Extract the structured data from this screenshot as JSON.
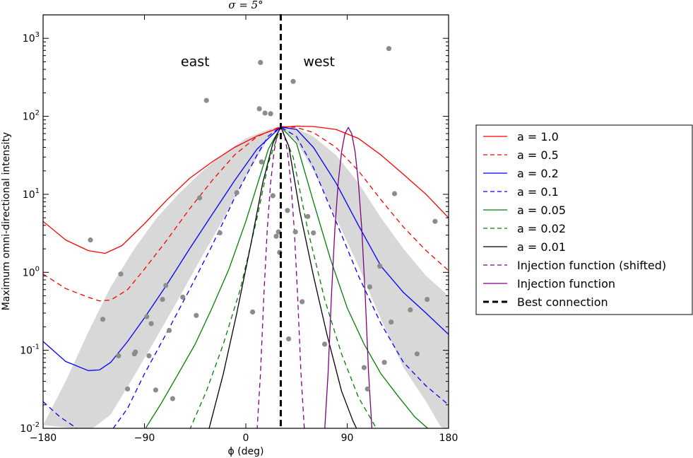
{
  "chart_data": {
    "type": "line",
    "title": "σ = 5°",
    "xlabel": "ϕ (deg)",
    "ylabel": "Maximum omni-directional intensity",
    "xlim": [
      -180,
      180
    ],
    "ylim": [
      0.01,
      2000
    ],
    "yscale": "log",
    "xticks": [
      -180,
      -90,
      0,
      90,
      180
    ],
    "xtick_labels": [
      "−180",
      "−90",
      "0",
      "90",
      "180"
    ],
    "yticks": [
      {
        "value": 0.01,
        "base": "10",
        "exp": "-2"
      },
      {
        "value": 0.1,
        "base": "10",
        "exp": "-1"
      },
      {
        "value": 1,
        "base": "10",
        "exp": "0"
      },
      {
        "value": 10,
        "base": "10",
        "exp": "1"
      },
      {
        "value": 100,
        "base": "10",
        "exp": "2"
      },
      {
        "value": 1000,
        "base": "10",
        "exp": "3"
      }
    ],
    "annotations": [
      {
        "text": "east",
        "x": -45,
        "y": 500
      },
      {
        "text": "west",
        "x": 65,
        "y": 500
      }
    ],
    "best_connection_x": 31,
    "series": [
      {
        "name": "a = 1.0",
        "color": "#ff0000",
        "style": "solid",
        "x": [
          -180,
          -160,
          -140,
          -125,
          -110,
          -90,
          -70,
          -50,
          -30,
          -10,
          10,
          31,
          45,
          60,
          80,
          100,
          120,
          140,
          160,
          180
        ],
        "y": [
          4.5,
          2.6,
          1.9,
          1.75,
          2.2,
          4.2,
          8.5,
          16,
          26,
          40,
          56,
          72,
          75,
          74,
          68,
          52,
          32,
          18,
          10,
          5
        ]
      },
      {
        "name": "a = 0.5",
        "color": "#ff0000",
        "style": "dashed",
        "x": [
          -180,
          -160,
          -140,
          -130,
          -120,
          -105,
          -90,
          -70,
          -50,
          -30,
          -10,
          10,
          31,
          45,
          60,
          80,
          100,
          120,
          140,
          160,
          180
        ],
        "y": [
          0.95,
          0.62,
          0.48,
          0.43,
          0.44,
          0.6,
          1.1,
          2.6,
          6.5,
          15,
          32,
          55,
          74,
          72,
          62,
          40,
          20,
          8.5,
          3.8,
          1.9,
          1.05
        ]
      },
      {
        "name": "a = 0.2",
        "color": "#0000ff",
        "style": "solid",
        "x": [
          -180,
          -160,
          -140,
          -130,
          -120,
          -105,
          -90,
          -70,
          -50,
          -30,
          -10,
          10,
          31,
          45,
          60,
          80,
          100,
          120,
          140,
          160,
          180
        ],
        "y": [
          0.13,
          0.072,
          0.055,
          0.056,
          0.07,
          0.13,
          0.26,
          0.7,
          2,
          5.5,
          15,
          38,
          73,
          68,
          40,
          14,
          4,
          1.2,
          0.55,
          0.3,
          0.16
        ]
      },
      {
        "name": "a = 0.1",
        "color": "#0000ff",
        "style": "dashed",
        "x": [
          -180,
          -165,
          -150,
          -135,
          -120,
          -105,
          -90,
          -70,
          -50,
          -30,
          -10,
          10,
          20,
          31,
          45,
          60,
          80,
          100,
          120,
          140,
          160,
          180
        ],
        "y": [
          0.022,
          0.014,
          0.01,
          0.0075,
          0.009,
          0.018,
          0.05,
          0.17,
          0.6,
          2.2,
          9,
          32,
          56,
          73,
          55,
          22,
          4.5,
          0.9,
          0.22,
          0.07,
          0.035,
          0.02
        ]
      },
      {
        "name": "a = 0.05",
        "color": "#008000",
        "style": "solid",
        "x": [
          -90,
          -75,
          -60,
          -45,
          -30,
          -15,
          0,
          10,
          20,
          31,
          45,
          60,
          75,
          90,
          105,
          120,
          135,
          150,
          165
        ],
        "y": [
          0.0095,
          0.021,
          0.05,
          0.12,
          0.35,
          1.1,
          4.5,
          13,
          38,
          73,
          45,
          8,
          1.5,
          0.35,
          0.12,
          0.05,
          0.026,
          0.014,
          0.009
        ]
      },
      {
        "name": "a = 0.02",
        "color": "#008000",
        "style": "dashed",
        "x": [
          -50,
          -35,
          -20,
          -5,
          10,
          20,
          31,
          42,
          55,
          70,
          85,
          100,
          115,
          118
        ],
        "y": [
          0.0095,
          0.03,
          0.12,
          0.6,
          5,
          25,
          73,
          30,
          3.5,
          0.45,
          0.09,
          0.025,
          0.0105,
          0.0095
        ]
      },
      {
        "name": "a = 0.01",
        "color": "#000000",
        "style": "solid",
        "x": [
          -33,
          -20,
          -8,
          5,
          15,
          24,
          31,
          38,
          48,
          60,
          72,
          85,
          95,
          99
        ],
        "y": [
          0.0095,
          0.05,
          0.3,
          2.5,
          14,
          45,
          73,
          42,
          6,
          0.9,
          0.16,
          0.03,
          0.0125,
          0.0095
        ]
      },
      {
        "name": "Injection function (shifted)",
        "color": "#800080",
        "style": "dashed",
        "x": [
          10,
          13,
          16,
          19,
          22,
          25,
          28,
          31,
          34,
          37,
          40,
          43,
          46,
          49,
          52
        ],
        "y": [
          0.0095,
          0.05,
          0.5,
          3.5,
          14,
          35,
          60,
          72,
          60,
          35,
          14,
          3.5,
          0.5,
          0.05,
          0.0095
        ]
      },
      {
        "name": "Injection function",
        "color": "#800080",
        "style": "solid",
        "x": [
          70,
          73,
          76,
          79,
          82,
          85,
          88,
          91,
          94,
          97,
          100,
          103,
          106,
          109,
          112
        ],
        "y": [
          0.0095,
          0.05,
          0.5,
          3.5,
          14,
          35,
          60,
          72,
          60,
          35,
          14,
          3.5,
          0.5,
          0.05,
          0.0095
        ]
      },
      {
        "name": "Best connection",
        "color": "#000000",
        "style": "best",
        "x": [],
        "y": []
      }
    ],
    "band": {
      "color": "#d8d8d8",
      "upper": {
        "x": [
          -180,
          -160,
          -140,
          -120,
          -100,
          -80,
          -60,
          -40,
          -20,
          0,
          20,
          31,
          45,
          60,
          80,
          100,
          120,
          140,
          160,
          180
        ],
        "y": [
          0.011,
          0.04,
          0.17,
          0.65,
          1.9,
          4.8,
          10,
          19,
          33,
          52,
          68,
          75,
          70,
          55,
          32,
          14,
          5,
          2,
          0.9,
          0.5
        ]
      },
      "lower": {
        "x": [
          -138,
          -120,
          -100,
          -80,
          -60,
          -40,
          -20,
          0,
          20,
          31,
          45,
          60,
          80,
          100,
          120,
          140,
          160,
          173,
          180
        ],
        "y": [
          0.0095,
          0.015,
          0.045,
          0.14,
          0.45,
          1.5,
          4.8,
          17,
          52,
          72,
          48,
          20,
          5,
          1.2,
          0.25,
          0.06,
          0.022,
          0.0105,
          0.0095
        ]
      }
    },
    "scatter": {
      "color": "#8c8c8c",
      "x": [
        -138,
        -127,
        -113,
        -111,
        -105,
        -99,
        -98,
        -88,
        -86,
        -84,
        -80,
        -74,
        -71,
        -68,
        -65,
        -56,
        -44,
        -41,
        -35,
        -23,
        -8,
        6,
        12,
        13,
        14,
        17,
        22,
        24,
        27,
        29,
        30,
        37,
        38,
        42,
        44,
        50,
        55,
        60,
        70,
        105,
        108,
        110,
        119,
        123,
        127,
        129,
        132,
        146,
        152,
        161,
        168
      ],
      "y": [
        2.6,
        0.25,
        0.085,
        0.95,
        0.032,
        0.09,
        0.095,
        0.27,
        0.085,
        0.22,
        0.031,
        0.45,
        0.68,
        0.18,
        0.024,
        0.48,
        0.28,
        9,
        160,
        3.2,
        10.5,
        0.31,
        125,
        490,
        26,
        110,
        108,
        9.6,
        2.9,
        3.3,
        1.8,
        6.2,
        0.14,
        280,
        3.3,
        0.42,
        5.2,
        3.2,
        0.12,
        0.06,
        0.032,
        0.65,
        1.2,
        0.07,
        740,
        0.23,
        10.2,
        0.33,
        0.09,
        0.45,
        4.5
      ]
    }
  }
}
